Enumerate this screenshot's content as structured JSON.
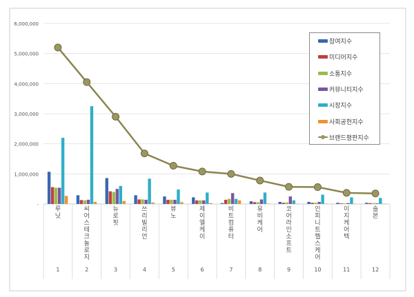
{
  "chart_data": {
    "type": "bar",
    "categories": [
      "루닛",
      "씨어스테크놀로지",
      "뉴로핏",
      "쓰리빌리언",
      "뷰노",
      "제이엘케이",
      "비트컴퓨터",
      "유비케어",
      "코어라인소프트",
      "인피니트헬스케어",
      "이지케어텍",
      "솔본"
    ],
    "ranks": [
      "1",
      "2",
      "3",
      "4",
      "5",
      "6",
      "7",
      "8",
      "9",
      "10",
      "11",
      "12"
    ],
    "ylim": [
      0,
      6000000
    ],
    "yticks": [
      "-",
      "1,000,000",
      "2,000,000",
      "3,000,000",
      "4,000,000",
      "5,000,000",
      "6,000,000"
    ],
    "grid": true,
    "legend_position": "top-right",
    "series": [
      {
        "name": "참여지수",
        "kind": "bar",
        "color": "#3a67b0",
        "values": [
          1070000,
          290000,
          860000,
          290000,
          250000,
          220000,
          30000,
          90000,
          70000,
          70000,
          40000,
          40000
        ]
      },
      {
        "name": "미디어지수",
        "kind": "bar",
        "color": "#c0403d",
        "values": [
          560000,
          130000,
          420000,
          150000,
          140000,
          120000,
          140000,
          60000,
          40000,
          40000,
          20000,
          30000
        ]
      },
      {
        "name": "소통지수",
        "kind": "bar",
        "color": "#9bbb4a",
        "values": [
          540000,
          120000,
          400000,
          150000,
          140000,
          120000,
          170000,
          60000,
          50000,
          40000,
          20000,
          30000
        ]
      },
      {
        "name": "커뮤니티지수",
        "kind": "bar",
        "color": "#7a55a0",
        "values": [
          540000,
          140000,
          500000,
          140000,
          140000,
          120000,
          360000,
          150000,
          250000,
          70000,
          30000,
          20000
        ]
      },
      {
        "name": "시장지수",
        "kind": "bar",
        "color": "#31aec8",
        "values": [
          2200000,
          3250000,
          600000,
          840000,
          480000,
          380000,
          170000,
          380000,
          120000,
          310000,
          220000,
          200000
        ]
      },
      {
        "name": "사회공헌지수",
        "kind": "bar",
        "color": "#f0922e",
        "values": [
          270000,
          70000,
          100000,
          50000,
          60000,
          30000,
          120000,
          10000,
          10000,
          10000,
          10000,
          10000
        ]
      },
      {
        "name": "브랜드평판지수",
        "kind": "line",
        "color": "#8a8450",
        "values": [
          5200000,
          4050000,
          2900000,
          1680000,
          1270000,
          1080000,
          1000000,
          780000,
          570000,
          560000,
          370000,
          350000
        ]
      }
    ]
  }
}
